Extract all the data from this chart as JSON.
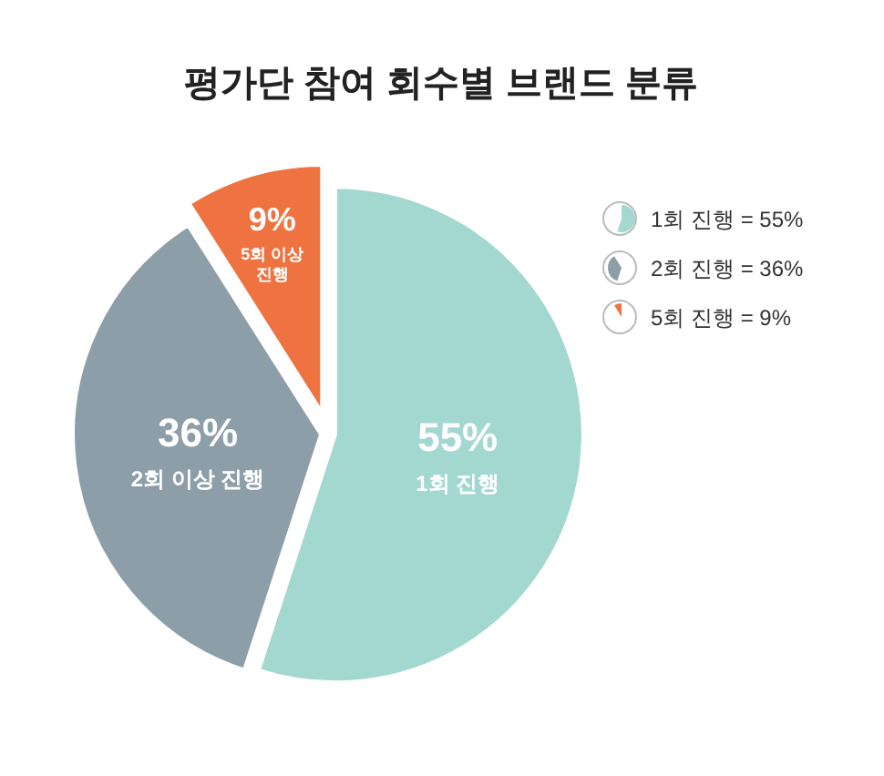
{
  "chart_data": {
    "type": "pie",
    "title": "평가단 참여 회수별 브랜드 분류",
    "categories": [
      "1회 진행 = 55%",
      "2회 진행 = 36%",
      "5회 진행 = 9%"
    ],
    "values": [
      55,
      36,
      9
    ],
    "colors": [
      "#a3d8d0",
      "#8c9ea8",
      "#ef7340"
    ],
    "annotations": [
      "1회 진행",
      "2회 이상 진행",
      "5회 이상 진행"
    ],
    "value_labels": [
      "55%",
      "36%",
      "9%"
    ],
    "legend": "top right"
  }
}
